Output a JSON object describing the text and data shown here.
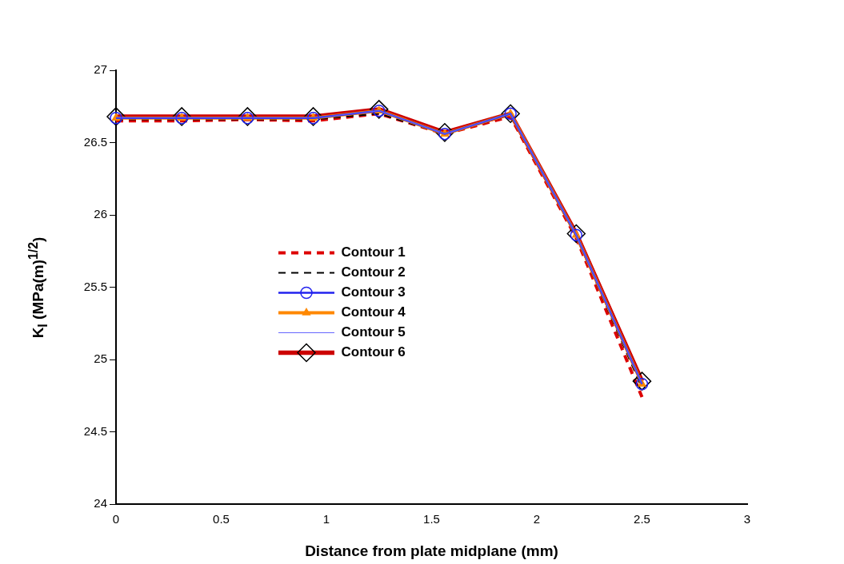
{
  "chart_data": {
    "type": "line",
    "xlabel": "Distance from plate midplane (mm)",
    "ylabel": "K$_{I}$ (MPa(m)$^{1/2}$)",
    "x": [
      0,
      0.3125,
      0.625,
      0.9375,
      1.25,
      1.5625,
      1.875,
      2.1875,
      2.5
    ],
    "xlim": [
      0,
      3
    ],
    "xticks": [
      0,
      0.5,
      1,
      1.5,
      2,
      2.5,
      3
    ],
    "ylim": [
      24,
      27
    ],
    "yticks": [
      24,
      24.5,
      25,
      25.5,
      26,
      26.5,
      27
    ],
    "grid": false,
    "legend": "left",
    "series": [
      {
        "name": "Contour 1",
        "color": "#dd0000",
        "line_style": "dashed",
        "marker": "none",
        "values": [
          26.65,
          26.65,
          26.66,
          26.65,
          26.7,
          26.56,
          26.68,
          25.84,
          24.74
        ]
      },
      {
        "name": "Contour 2",
        "color": "#000000",
        "line_style": "dashed",
        "marker": "none",
        "values": [
          26.66,
          26.66,
          26.66,
          26.66,
          26.7,
          26.56,
          26.69,
          25.85,
          24.8
        ]
      },
      {
        "name": "Contour 3",
        "color": "#2222ee",
        "line_style": "solid",
        "marker": "circle",
        "values": [
          26.67,
          26.67,
          26.67,
          26.67,
          26.72,
          26.56,
          26.7,
          25.86,
          24.83
        ]
      },
      {
        "name": "Contour 4",
        "color": "#ff8800",
        "line_style": "solid",
        "marker": "triangle",
        "values": [
          26.67,
          26.67,
          26.67,
          26.67,
          26.72,
          26.56,
          26.7,
          25.86,
          24.83
        ]
      },
      {
        "name": "Contour 5",
        "color": "#6666ff",
        "line_style": "solid",
        "marker": "none",
        "values": [
          26.67,
          26.67,
          26.67,
          26.67,
          26.72,
          26.56,
          26.7,
          25.86,
          24.83
        ]
      },
      {
        "name": "Contour 6",
        "color": "#cc0000",
        "line_style": "solid",
        "marker": "diamond",
        "values": [
          26.68,
          26.68,
          26.68,
          26.68,
          26.73,
          26.57,
          26.7,
          25.87,
          24.85
        ]
      }
    ]
  }
}
